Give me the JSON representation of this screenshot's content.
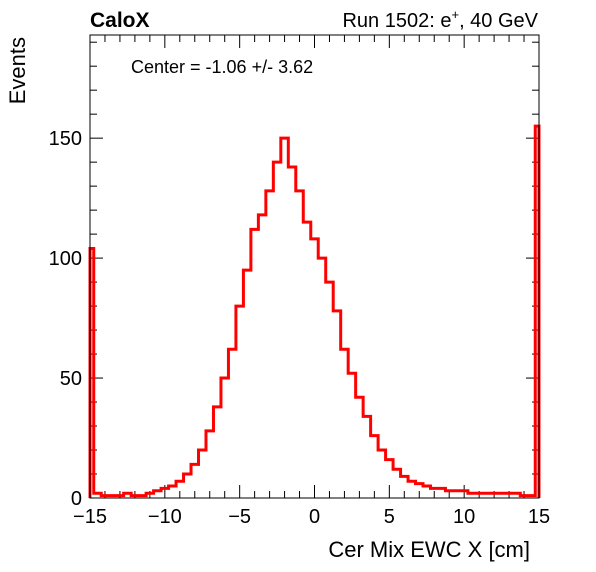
{
  "header": {
    "left_label": "CaloX",
    "run_prefix": "Run 1502: e",
    "run_superscript": "+",
    "run_suffix": ", 40 GeV"
  },
  "annotation": "Center = -1.06 +/- 3.62",
  "chart_data": {
    "type": "histogram",
    "xlabel": "Cer Mix EWC X [cm]",
    "ylabel": "Events",
    "xlim": [
      -15,
      15
    ],
    "ylim": [
      0,
      193
    ],
    "x_ticks": [
      -15,
      -10,
      -5,
      0,
      5,
      10,
      15
    ],
    "x_tick_labels": [
      "−15",
      "−10",
      "−5",
      "0",
      "5",
      "10",
      "15"
    ],
    "y_ticks": [
      0,
      50,
      100,
      150
    ],
    "y_tick_labels": [
      "0",
      "50",
      "100",
      "150"
    ],
    "grid": false,
    "legend": "none",
    "series": [
      {
        "color": "#ff0000",
        "bin_centers": [
          -15.0,
          -14.5,
          -14.0,
          -13.5,
          -13.0,
          -12.5,
          -12.0,
          -11.5,
          -11.0,
          -10.5,
          -10.0,
          -9.5,
          -9.0,
          -8.5,
          -8.0,
          -7.5,
          -7.0,
          -6.5,
          -6.0,
          -5.5,
          -5.0,
          -4.5,
          -4.0,
          -3.5,
          -3.0,
          -2.5,
          -2.0,
          -1.5,
          -1.0,
          -0.5,
          0.0,
          0.5,
          1.0,
          1.5,
          2.0,
          2.5,
          3.0,
          3.5,
          4.0,
          4.5,
          5.0,
          5.5,
          6.0,
          6.5,
          7.0,
          7.5,
          8.0,
          8.5,
          9.0,
          9.5,
          10.0,
          10.5,
          11.0,
          11.5,
          12.0,
          12.5,
          13.0,
          13.5,
          14.0,
          14.5,
          15.0
        ],
        "counts": [
          104,
          2,
          1,
          1,
          1,
          2,
          1,
          1,
          2,
          3,
          4,
          5,
          7,
          10,
          14,
          20,
          28,
          38,
          50,
          62,
          80,
          95,
          112,
          118,
          128,
          140,
          150,
          138,
          128,
          115,
          108,
          100,
          90,
          78,
          62,
          52,
          42,
          34,
          26,
          20,
          16,
          12,
          9,
          7,
          6,
          5,
          4,
          4,
          3,
          3,
          3,
          2,
          2,
          2,
          2,
          2,
          2,
          2,
          1,
          1,
          155
        ]
      }
    ]
  }
}
